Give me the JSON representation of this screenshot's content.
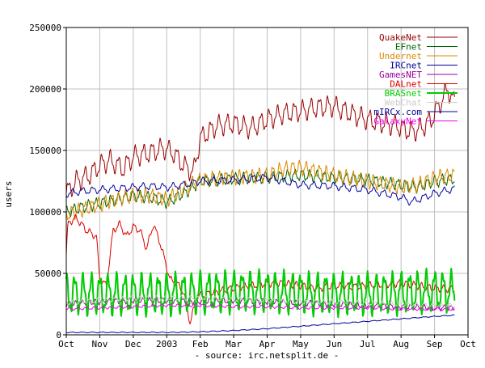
{
  "chart_data": {
    "type": "line",
    "ylabel": "users",
    "xlabel": "- source: irc.netsplit.de -",
    "ylim": [
      0,
      250000
    ],
    "grid": true,
    "legend_position": "top-right",
    "y_ticks": [
      {
        "value": 0,
        "label": "0"
      },
      {
        "value": 50000,
        "label": "50000"
      },
      {
        "value": 100000,
        "label": "100000"
      },
      {
        "value": 150000,
        "label": "150000"
      },
      {
        "value": 200000,
        "label": "200000"
      },
      {
        "value": 250000,
        "label": "250000"
      }
    ],
    "x_ticks": [
      "Oct",
      "Nov",
      "Dec",
      "2003",
      "Feb",
      "Mar",
      "Apr",
      "May",
      "Jun",
      "Jul",
      "Aug",
      "Sep",
      "Oct"
    ],
    "x_range": [
      0,
      12
    ],
    "series": [
      {
        "name": "QuakeNet",
        "color": "#990000",
        "width": 1,
        "x": [
          0,
          0.3,
          0.7,
          1,
          1.3,
          1.7,
          2,
          2.5,
          2.9,
          3.2,
          3.5,
          3.8,
          4,
          4.5,
          5,
          5.5,
          6,
          6.5,
          7,
          7.5,
          8,
          8.5,
          9,
          9.5,
          9.9,
          10.3,
          10.6,
          10.9,
          11.2,
          11.4,
          11.6
        ],
        "y": [
          115000,
          125000,
          130000,
          138000,
          142000,
          135000,
          145000,
          148000,
          152000,
          148000,
          138000,
          132000,
          160000,
          170000,
          172000,
          168000,
          175000,
          180000,
          182000,
          185000,
          186000,
          180000,
          175000,
          172000,
          170000,
          165000,
          168000,
          175000,
          190000,
          200000,
          188000
        ],
        "amp": 7000,
        "period": 0.25
      },
      {
        "name": "EFnet",
        "color": "#006600",
        "width": 1,
        "x": [
          0,
          0.5,
          1,
          1.5,
          2,
          2.5,
          3,
          3.3,
          3.7,
          4,
          5,
          6,
          7,
          8,
          9,
          9.5,
          10,
          10.5,
          11,
          11.6
        ],
        "y": [
          100000,
          104000,
          107000,
          110000,
          113000,
          112000,
          108000,
          112000,
          118000,
          125000,
          127000,
          128000,
          130000,
          128000,
          126000,
          124000,
          122000,
          120000,
          125000,
          127000
        ],
        "amp": 4000,
        "period": 0.22
      },
      {
        "name": "Undernet",
        "color": "#dd8800",
        "width": 1,
        "x": [
          0,
          0.5,
          1,
          1.5,
          2,
          2.5,
          3,
          3.3,
          3.7,
          4,
          5,
          6,
          6.5,
          7,
          8,
          9,
          9.5,
          10,
          10.5,
          11,
          11.6
        ],
        "y": [
          98000,
          102000,
          106000,
          110000,
          114000,
          113000,
          110000,
          115000,
          122000,
          126000,
          128000,
          130000,
          135000,
          136000,
          130000,
          125000,
          123000,
          120000,
          122000,
          128000,
          130000
        ],
        "amp": 5000,
        "period": 0.2
      },
      {
        "name": "IRCnet",
        "color": "#000099",
        "width": 1,
        "x": [
          0,
          0.5,
          1,
          1.5,
          2,
          2.5,
          3,
          3.5,
          4,
          5,
          6,
          6.5,
          7,
          8,
          9,
          9.5,
          10,
          10.3,
          10.7,
          11,
          11.6
        ],
        "y": [
          115000,
          117000,
          118000,
          119000,
          120000,
          121000,
          120000,
          122000,
          125000,
          126000,
          128000,
          125000,
          122000,
          121000,
          118000,
          115000,
          112000,
          108000,
          112000,
          115000,
          119000
        ],
        "amp": 2500,
        "period": 0.3
      },
      {
        "name": "GamesNET",
        "color": "#990099",
        "width": 1,
        "x": [
          0,
          1,
          2,
          3,
          4,
          5,
          6,
          7,
          8,
          9,
          10,
          11,
          11.6
        ],
        "y": [
          25000,
          27000,
          28000,
          28000,
          27000,
          28000,
          27000,
          26000,
          25000,
          24000,
          23000,
          22000,
          22000
        ],
        "amp": 2000,
        "period": 0.2
      },
      {
        "name": "DALnet",
        "color": "#dd0000",
        "width": 1,
        "x": [
          0,
          0.05,
          0.1,
          0.3,
          0.6,
          0.9,
          1,
          1.2,
          1.4,
          1.6,
          1.8,
          2,
          2.2,
          2.4,
          2.6,
          2.8,
          3,
          3.1,
          3.3,
          3.5,
          3.7,
          3.9,
          4,
          4.5,
          5,
          5.5,
          6,
          6.5,
          7,
          7.5,
          8,
          8.5,
          9,
          9.5,
          10,
          10.5,
          11,
          11.6
        ],
        "y": [
          65000,
          90000,
          92000,
          95000,
          85000,
          80000,
          45000,
          40000,
          85000,
          90000,
          80000,
          88000,
          85000,
          70000,
          90000,
          75000,
          55000,
          45000,
          42000,
          35000,
          10000,
          30000,
          32000,
          35000,
          38000,
          40000,
          42000,
          42000,
          40000,
          38000,
          40000,
          39000,
          40000,
          41000,
          42000,
          40000,
          38000,
          37000
        ],
        "amp": 2500,
        "period": 0.22
      },
      {
        "name": "BRASnet",
        "color": "#00cc00",
        "width": 2,
        "x": [
          0,
          1,
          2,
          3,
          4,
          5,
          6,
          7,
          8,
          9,
          10,
          11,
          11.6
        ],
        "y": [
          33000,
          33000,
          33000,
          33000,
          34000,
          35000,
          35000,
          34000,
          33000,
          33000,
          34000,
          36000,
          35000
        ],
        "amp": 14000,
        "period": 0.25
      },
      {
        "name": "WebChat",
        "color": "#cccccc",
        "width": 1,
        "x": [
          0,
          1,
          2,
          3,
          4,
          5,
          6,
          7,
          8,
          9,
          10,
          11,
          11.6
        ],
        "y": [
          26000,
          28000,
          30000,
          30000,
          30000,
          29000,
          28000,
          27000,
          27000,
          26000,
          25000,
          24000,
          24000
        ],
        "amp": 1500,
        "period": 0.25
      },
      {
        "name": "mIRCx.com",
        "color": "#000099",
        "width": 1,
        "x": [
          0,
          1,
          2,
          3,
          3.2,
          4,
          5,
          6,
          7,
          8,
          9,
          10,
          11,
          11.6
        ],
        "y": [
          2000,
          2000,
          2000,
          2000,
          2000,
          2500,
          3500,
          5000,
          7000,
          9000,
          11000,
          13000,
          15000,
          16000
        ],
        "amp": 300,
        "period": 0.3
      },
      {
        "name": "GalaxyNet",
        "color": "#ee00ee",
        "width": 1,
        "x": [
          0,
          1,
          2,
          3,
          4,
          5,
          6,
          7,
          8,
          9,
          10,
          11,
          11.6
        ],
        "y": [
          21000,
          22000,
          23000,
          24000,
          24000,
          23000,
          23000,
          22000,
          22000,
          22000,
          21000,
          21000,
          21000
        ],
        "amp": 1000,
        "period": 0.25
      }
    ]
  }
}
